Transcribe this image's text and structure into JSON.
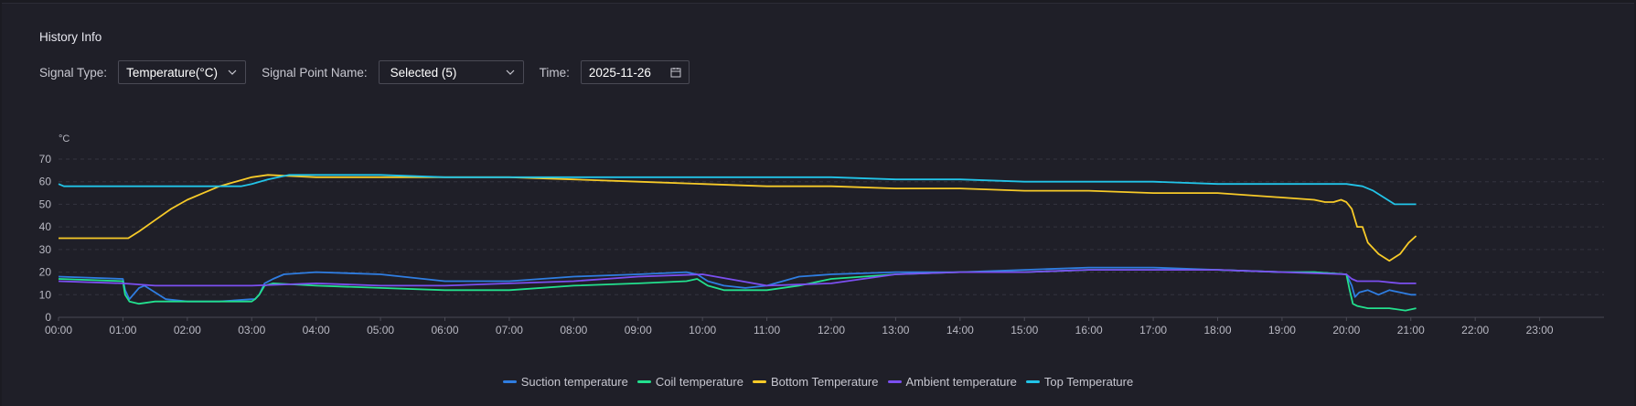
{
  "header": {
    "title": "History Info"
  },
  "filters": {
    "signal_type_label": "Signal Type:",
    "signal_type_value": "Temperature(°C)",
    "signal_point_label": "Signal Point Name:",
    "signal_point_value": "Selected (5)",
    "time_label": "Time:",
    "time_value": "2025-11-26"
  },
  "icons": {
    "dropdown": "chevron-down-icon",
    "calendar": "calendar-icon"
  },
  "chart_data": {
    "type": "line",
    "unit": "°C",
    "ylim": [
      0,
      70
    ],
    "yticks": [
      0,
      10,
      20,
      30,
      40,
      50,
      60,
      70
    ],
    "xlim": [
      0,
      1380
    ],
    "xticks": [
      "00:00",
      "01:00",
      "02:00",
      "03:00",
      "04:00",
      "05:00",
      "06:00",
      "07:00",
      "08:00",
      "09:00",
      "10:00",
      "11:00",
      "12:00",
      "13:00",
      "14:00",
      "15:00",
      "16:00",
      "17:00",
      "18:00",
      "19:00",
      "20:00",
      "21:00",
      "22:00",
      "23:00"
    ],
    "grid": true,
    "legend_position": "bottom",
    "series": [
      {
        "name": "Suction temperature",
        "color": "#2f7de1",
        "x": [
          0,
          60,
          62,
          66,
          75,
          80,
          90,
          100,
          120,
          150,
          180,
          183,
          187,
          192,
          200,
          210,
          240,
          300,
          360,
          420,
          480,
          540,
          585,
          595,
          605,
          620,
          640,
          660,
          690,
          720,
          780,
          840,
          900,
          960,
          1020,
          1080,
          1140,
          1170,
          1200,
          1205,
          1208,
          1212,
          1220,
          1230,
          1240,
          1250,
          1260,
          1265
        ],
        "y": [
          18,
          17,
          12,
          8,
          13,
          14,
          11,
          8,
          7,
          7,
          8,
          8,
          10,
          15,
          17,
          19,
          20,
          19,
          16,
          16,
          18,
          19,
          20,
          19,
          16,
          14,
          13,
          14,
          18,
          19,
          20,
          20,
          21,
          22,
          22,
          21,
          20,
          20,
          19,
          14,
          9,
          11,
          12,
          10,
          12,
          11,
          10,
          10
        ]
      },
      {
        "name": "Coil temperature",
        "color": "#23e08e",
        "x": [
          0,
          60,
          62,
          66,
          75,
          90,
          120,
          150,
          180,
          183,
          187,
          192,
          200,
          240,
          300,
          360,
          420,
          480,
          540,
          585,
          595,
          605,
          620,
          640,
          660,
          690,
          720,
          780,
          840,
          900,
          960,
          1020,
          1080,
          1140,
          1170,
          1200,
          1203,
          1206,
          1210,
          1220,
          1240,
          1255,
          1265
        ],
        "y": [
          17,
          16,
          10,
          7,
          6,
          7,
          7,
          7,
          7,
          8,
          10,
          14,
          15,
          14,
          13,
          12,
          12,
          14,
          15,
          16,
          17,
          14,
          12,
          12,
          12,
          14,
          17,
          19,
          20,
          20,
          21,
          21,
          21,
          20,
          20,
          19,
          12,
          6,
          5,
          4,
          4,
          3,
          4
        ]
      },
      {
        "name": "Bottom Temperature",
        "color": "#f7ca28",
        "x": [
          0,
          60,
          65,
          75,
          90,
          105,
          120,
          135,
          150,
          165,
          180,
          195,
          240,
          300,
          360,
          420,
          480,
          540,
          600,
          660,
          720,
          780,
          840,
          900,
          960,
          1020,
          1080,
          1140,
          1170,
          1180,
          1188,
          1195,
          1200,
          1205,
          1210,
          1215,
          1220,
          1230,
          1240,
          1250,
          1258,
          1265
        ],
        "y": [
          35,
          35,
          35,
          38,
          43,
          48,
          52,
          55,
          58,
          60,
          62,
          63,
          62,
          62,
          62,
          62,
          61,
          60,
          59,
          58,
          58,
          57,
          57,
          56,
          56,
          55,
          55,
          53,
          52,
          51,
          51,
          52,
          51,
          48,
          40,
          40,
          33,
          28,
          25,
          28,
          33,
          36
        ]
      },
      {
        "name": "Ambient temperature",
        "color": "#7b4ff0",
        "x": [
          0,
          60,
          90,
          120,
          180,
          240,
          300,
          360,
          420,
          480,
          540,
          600,
          660,
          720,
          780,
          840,
          900,
          960,
          1020,
          1080,
          1140,
          1200,
          1205,
          1210,
          1230,
          1250,
          1265
        ],
        "y": [
          16,
          15,
          14,
          14,
          14,
          15,
          14,
          14,
          15,
          16,
          18,
          19,
          14,
          15,
          19,
          20,
          20,
          21,
          21,
          21,
          20,
          19,
          17,
          16,
          16,
          15,
          15
        ]
      },
      {
        "name": "Top Temperature",
        "color": "#22c4e8",
        "x": [
          0,
          5,
          60,
          120,
          170,
          180,
          195,
          215,
          260,
          300,
          360,
          420,
          480,
          540,
          600,
          660,
          720,
          780,
          840,
          900,
          960,
          1020,
          1080,
          1140,
          1180,
          1200,
          1215,
          1225,
          1235,
          1245,
          1255,
          1265
        ],
        "y": [
          59,
          58,
          58,
          58,
          58,
          59,
          61,
          63,
          63,
          63,
          62,
          62,
          62,
          62,
          62,
          62,
          62,
          61,
          61,
          60,
          60,
          60,
          59,
          59,
          59,
          59,
          58,
          56,
          53,
          50,
          50,
          50
        ]
      }
    ]
  }
}
